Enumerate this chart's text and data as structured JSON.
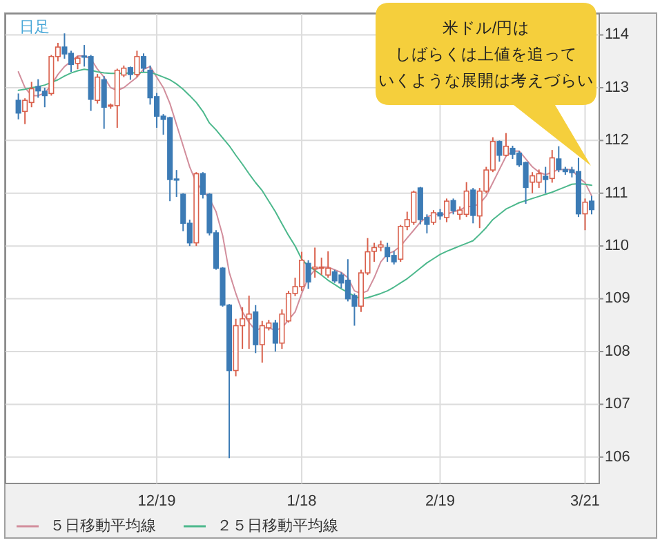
{
  "chart_data": {
    "type": "candlestick",
    "annotations": [
      "日足",
      "米ドル/円は",
      "しばらくは上値を追って",
      "いくような展開は考えづらい"
    ],
    "categories": [
      null,
      null,
      null,
      null,
      null,
      null,
      null,
      null,
      null,
      null,
      null,
      null,
      null,
      null,
      null,
      null,
      null,
      null,
      null,
      null,
      null,
      "12/19",
      null,
      null,
      null,
      null,
      null,
      null,
      null,
      null,
      null,
      null,
      null,
      null,
      null,
      null,
      null,
      null,
      null,
      null,
      null,
      null,
      null,
      "1/18",
      null,
      null,
      null,
      null,
      null,
      null,
      null,
      null,
      null,
      null,
      null,
      null,
      null,
      null,
      null,
      null,
      null,
      null,
      null,
      null,
      "2/19",
      null,
      null,
      null,
      null,
      null,
      null,
      null,
      null,
      null,
      null,
      null,
      null,
      null,
      null,
      null,
      null,
      null,
      null,
      null,
      null,
      null,
      "3/21",
      null
    ],
    "ohlc": [
      [
        112.76,
        112.89,
        112.4,
        112.52
      ],
      [
        112.55,
        112.8,
        112.31,
        112.76
      ],
      [
        112.72,
        113.11,
        112.63,
        112.98
      ],
      [
        113.02,
        113.16,
        112.81,
        112.94
      ],
      [
        112.93,
        113.0,
        112.63,
        112.85
      ],
      [
        112.89,
        113.62,
        112.85,
        113.59
      ],
      [
        113.59,
        113.85,
        113.5,
        113.77
      ],
      [
        113.77,
        114.03,
        113.55,
        113.64
      ],
      [
        113.65,
        113.7,
        113.3,
        113.44
      ],
      [
        113.46,
        113.6,
        113.35,
        113.56
      ],
      [
        113.6,
        113.81,
        113.4,
        113.58
      ],
      [
        113.59,
        113.62,
        112.56,
        112.78
      ],
      [
        112.76,
        113.26,
        112.7,
        113.2
      ],
      [
        113.15,
        113.22,
        112.22,
        112.63
      ],
      [
        112.65,
        112.7,
        112.6,
        112.67
      ],
      [
        112.66,
        113.36,
        112.24,
        113.33
      ],
      [
        113.24,
        113.42,
        113.2,
        113.37
      ],
      [
        113.38,
        113.4,
        113.15,
        113.25
      ],
      [
        113.25,
        113.7,
        113.2,
        113.59
      ],
      [
        113.59,
        113.65,
        113.3,
        113.37
      ],
      [
        113.33,
        113.42,
        112.68,
        112.81
      ],
      [
        112.83,
        112.9,
        112.24,
        112.46
      ],
      [
        112.46,
        112.5,
        112.11,
        112.4
      ],
      [
        112.43,
        112.45,
        110.85,
        111.26
      ],
      [
        111.27,
        111.44,
        110.93,
        111.25
      ],
      [
        110.98,
        111.0,
        110.28,
        110.43
      ],
      [
        110.43,
        110.5,
        110.0,
        110.06
      ],
      [
        110.06,
        111.4,
        110.0,
        111.37
      ],
      [
        111.37,
        111.4,
        110.9,
        110.98
      ],
      [
        110.98,
        111.0,
        110.2,
        110.25
      ],
      [
        110.25,
        110.3,
        109.55,
        109.58
      ],
      [
        109.58,
        109.6,
        108.85,
        108.88
      ],
      [
        108.88,
        108.9,
        105.98,
        107.64
      ],
      [
        107.64,
        108.62,
        107.53,
        108.49
      ],
      [
        108.49,
        108.84,
        108.05,
        108.62
      ],
      [
        108.62,
        109.06,
        108.05,
        108.71
      ],
      [
        108.75,
        108.88,
        107.97,
        108.13
      ],
      [
        108.13,
        108.58,
        107.79,
        108.49
      ],
      [
        108.45,
        108.6,
        108.4,
        108.54
      ],
      [
        108.54,
        108.6,
        108.0,
        108.16
      ],
      [
        108.16,
        108.8,
        108.05,
        108.71
      ],
      [
        108.58,
        109.15,
        108.55,
        109.1
      ],
      [
        109.1,
        109.4,
        109.05,
        109.23
      ],
      [
        109.23,
        109.89,
        109.15,
        109.73
      ],
      [
        109.67,
        109.73,
        109.19,
        109.32
      ],
      [
        109.57,
        109.97,
        109.4,
        109.6
      ],
      [
        109.58,
        109.78,
        109.45,
        109.6
      ],
      [
        109.45,
        109.9,
        109.4,
        109.58
      ],
      [
        109.51,
        109.55,
        109.3,
        109.34
      ],
      [
        109.45,
        109.5,
        109.2,
        109.3
      ],
      [
        109.35,
        109.75,
        108.95,
        109.0
      ],
      [
        109.06,
        109.1,
        108.49,
        108.86
      ],
      [
        108.86,
        109.55,
        108.75,
        109.49
      ],
      [
        109.49,
        110.15,
        109.45,
        109.89
      ],
      [
        109.9,
        110.06,
        109.7,
        109.97
      ],
      [
        109.98,
        110.1,
        109.9,
        110.02
      ],
      [
        109.97,
        110.06,
        109.7,
        109.8
      ],
      [
        109.82,
        109.9,
        109.65,
        109.7
      ],
      [
        109.75,
        110.4,
        109.7,
        110.37
      ],
      [
        110.37,
        110.65,
        110.3,
        110.5
      ],
      [
        110.45,
        111.05,
        110.4,
        111.02
      ],
      [
        111.1,
        111.12,
        110.41,
        110.5
      ],
      [
        110.54,
        110.6,
        110.24,
        110.41
      ],
      [
        110.45,
        110.68,
        110.4,
        110.63
      ],
      [
        110.63,
        110.7,
        110.5,
        110.57
      ],
      [
        110.54,
        110.9,
        110.45,
        110.85
      ],
      [
        110.86,
        110.9,
        110.6,
        110.67
      ],
      [
        110.6,
        110.75,
        110.5,
        110.68
      ],
      [
        110.6,
        111.21,
        110.55,
        111.04
      ],
      [
        111.06,
        111.1,
        110.43,
        110.58
      ],
      [
        110.57,
        111.1,
        110.34,
        111.04
      ],
      [
        111.04,
        111.5,
        111.0,
        111.44
      ],
      [
        111.44,
        112.06,
        111.4,
        111.98
      ],
      [
        111.98,
        112.0,
        111.6,
        111.72
      ],
      [
        111.72,
        112.14,
        111.7,
        111.89
      ],
      [
        111.85,
        111.9,
        111.65,
        111.74
      ],
      [
        111.76,
        111.8,
        111.5,
        111.54
      ],
      [
        111.58,
        111.6,
        110.8,
        111.11
      ],
      [
        111.21,
        111.4,
        111.0,
        111.33
      ],
      [
        111.21,
        111.45,
        111.1,
        111.37
      ],
      [
        111.32,
        111.5,
        111.0,
        111.26
      ],
      [
        111.28,
        111.82,
        111.2,
        111.67
      ],
      [
        111.65,
        111.89,
        111.4,
        111.45
      ],
      [
        111.45,
        111.5,
        111.35,
        111.41
      ],
      [
        111.44,
        111.5,
        111.3,
        111.39
      ],
      [
        111.41,
        111.67,
        110.55,
        110.61
      ],
      [
        110.61,
        110.9,
        110.3,
        110.83
      ],
      [
        110.85,
        110.95,
        110.6,
        110.69
      ]
    ],
    "colors": [
      "#3c7bb5",
      "#d9604c",
      "#d9604c",
      "#3c7bb5",
      "#3c7bb5",
      "#d9604c",
      "#d9604c",
      "#3c7bb5",
      "#3c7bb5",
      "#d9604c",
      "#3c7bb5",
      "#3c7bb5",
      "#d9604c",
      "#3c7bb5",
      "#d9604c",
      "#d9604c",
      "#d9604c",
      "#3c7bb5",
      "#d9604c",
      "#3c7bb5",
      "#3c7bb5",
      "#3c7bb5",
      "#3c7bb5",
      "#3c7bb5",
      "#3c7bb5",
      "#3c7bb5",
      "#3c7bb5",
      "#d9604c",
      "#3c7bb5",
      "#3c7bb5",
      "#3c7bb5",
      "#3c7bb5",
      "#3c7bb5",
      "#d9604c",
      "#d9604c",
      "#d9604c",
      "#3c7bb5",
      "#d9604c",
      "#d9604c",
      "#3c7bb5",
      "#d9604c",
      "#d9604c",
      "#d9604c",
      "#d9604c",
      "#3c7bb5",
      "#d9604c",
      "#d9604c",
      "#d9604c",
      "#3c7bb5",
      "#3c7bb5",
      "#3c7bb5",
      "#3c7bb5",
      "#d9604c",
      "#d9604c",
      "#d9604c",
      "#d9604c",
      "#3c7bb5",
      "#3c7bb5",
      "#d9604c",
      "#d9604c",
      "#d9604c",
      "#3c7bb5",
      "#3c7bb5",
      "#d9604c",
      "#3c7bb5",
      "#d9604c",
      "#3c7bb5",
      "#d9604c",
      "#d9604c",
      "#3c7bb5",
      "#d9604c",
      "#d9604c",
      "#d9604c",
      "#3c7bb5",
      "#d9604c",
      "#3c7bb5",
      "#3c7bb5",
      "#3c7bb5",
      "#d9604c",
      "#d9604c",
      "#3c7bb5",
      "#d9604c",
      "#3c7bb5",
      "#3c7bb5",
      "#3c7bb5",
      "#3c7bb5",
      "#d9604c",
      "#3c7bb5"
    ],
    "series": [
      {
        "type": "line",
        "name": "５日移動平均線",
        "color": "#d28e9c",
        "values": [
          113.3,
          113.0,
          112.85,
          112.85,
          112.9,
          113.05,
          113.25,
          113.4,
          113.5,
          113.6,
          113.6,
          113.55,
          113.35,
          113.2,
          113.0,
          112.95,
          113.0,
          113.1,
          113.2,
          113.35,
          113.4,
          113.2,
          113.0,
          112.7,
          112.3,
          111.9,
          111.5,
          111.2,
          111.05,
          110.9,
          110.65,
          110.2,
          109.5,
          109.1,
          108.75,
          108.55,
          108.4,
          108.45,
          108.45,
          108.4,
          108.45,
          108.6,
          108.75,
          109.1,
          109.4,
          109.55,
          109.6,
          109.6,
          109.55,
          109.5,
          109.4,
          109.15,
          109.1,
          109.15,
          109.4,
          109.7,
          109.85,
          109.9,
          110.0,
          110.15,
          110.3,
          110.45,
          110.55,
          110.6,
          110.6,
          110.6,
          110.65,
          110.68,
          110.75,
          110.75,
          110.8,
          110.95,
          111.2,
          111.45,
          111.7,
          111.8,
          111.8,
          111.65,
          111.5,
          111.4,
          111.35,
          111.4,
          111.45,
          111.45,
          111.45,
          111.3,
          111.2,
          110.95
        ]
      },
      {
        "type": "line",
        "name": "２５日移動平均線",
        "color": "#4cb88c",
        "values": [
          112.95,
          112.97,
          113.0,
          113.02,
          113.05,
          113.1,
          113.15,
          113.22,
          113.28,
          113.32,
          113.35,
          113.33,
          113.3,
          113.28,
          113.27,
          113.27,
          113.27,
          113.28,
          113.28,
          113.29,
          113.29,
          113.25,
          113.2,
          113.15,
          113.07,
          112.97,
          112.85,
          112.72,
          112.55,
          112.33,
          112.2,
          112.05,
          111.9,
          111.72,
          111.55,
          111.37,
          111.2,
          111.05,
          110.85,
          110.65,
          110.42,
          110.2,
          110.0,
          109.75,
          109.62,
          109.54,
          109.45,
          109.35,
          109.27,
          109.19,
          109.12,
          109.05,
          109.0,
          109.02,
          109.06,
          109.1,
          109.15,
          109.22,
          109.3,
          109.38,
          109.48,
          109.58,
          109.68,
          109.76,
          109.84,
          109.9,
          109.95,
          110.0,
          110.05,
          110.1,
          110.22,
          110.35,
          110.5,
          110.6,
          110.7,
          110.76,
          110.82,
          110.86,
          110.9,
          110.94,
          110.98,
          111.02,
          111.07,
          111.12,
          111.17,
          111.18,
          111.17,
          111.15
        ]
      }
    ],
    "ylim": [
      105.5,
      114.4
    ],
    "yticks": [
      106,
      107,
      108,
      109,
      110,
      111,
      112,
      113,
      114
    ],
    "grid": true,
    "legend": "bottom"
  }
}
